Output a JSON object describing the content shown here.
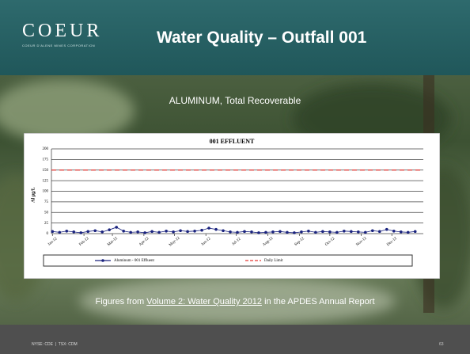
{
  "slide": {
    "logo": "COEUR",
    "logo_tagline": "COEUR D'ALENE MINES CORPORATION",
    "title": "Water Quality – Outfall 001",
    "subtitle": "ALUMINUM, Total Recoverable",
    "caption": [
      "Figures from ",
      "Volume 2: Water Quality 2012",
      " in the APDES Annual Report"
    ],
    "footer": "NYSE: CDE  |  TSX: CDM",
    "page_number": "63"
  },
  "chart_data": {
    "type": "line",
    "title": "001 EFFLUENT",
    "y_label": "Al µg/L",
    "xlim": [
      0,
      366
    ],
    "xticks": [
      {
        "value": 1,
        "label": "Jan-12"
      },
      {
        "value": 32,
        "label": "Feb-12"
      },
      {
        "value": 60,
        "label": "Mar-12"
      },
      {
        "value": 91,
        "label": "Apr-12"
      },
      {
        "value": 121,
        "label": "May-12"
      },
      {
        "value": 152,
        "label": "Jun-12"
      },
      {
        "value": 182,
        "label": "Jul-12"
      },
      {
        "value": 213,
        "label": "Aug-12"
      },
      {
        "value": 244,
        "label": "Sep-12"
      },
      {
        "value": 274,
        "label": "Oct-12"
      },
      {
        "value": 305,
        "label": "Nov-12"
      },
      {
        "value": 335,
        "label": "Dec-12"
      }
    ],
    "ylim": [
      0,
      200
    ],
    "yticks": [
      0,
      25,
      50,
      75,
      100,
      125,
      150,
      175,
      200
    ],
    "grid": true,
    "series": [
      {
        "name": "Aluminum - 001 Effluent",
        "color": "#1a237e",
        "dash": false,
        "markers": true,
        "x": [
          1,
          8,
          15,
          22,
          29,
          36,
          43,
          50,
          57,
          64,
          71,
          78,
          85,
          92,
          99,
          106,
          113,
          120,
          127,
          134,
          141,
          148,
          155,
          162,
          169,
          176,
          183,
          190,
          197,
          204,
          211,
          218,
          225,
          232,
          239,
          246,
          253,
          260,
          267,
          274,
          281,
          288,
          295,
          302,
          309,
          316,
          323,
          330,
          337,
          344,
          351,
          358
        ],
        "values": [
          5,
          3,
          6,
          4,
          2,
          5,
          7,
          4,
          9,
          15,
          6,
          3,
          4,
          2,
          5,
          3,
          6,
          4,
          7,
          5,
          6,
          8,
          13,
          10,
          7,
          4,
          3,
          5,
          4,
          2,
          3,
          4,
          5,
          3,
          2,
          4,
          6,
          3,
          5,
          4,
          3,
          6,
          5,
          4,
          3,
          7,
          5,
          10,
          6,
          4,
          3,
          5
        ]
      },
      {
        "name": "Daily Limit",
        "color": "#e53935",
        "dash": true,
        "markers": false,
        "x": [
          0,
          366
        ],
        "values": [
          150,
          150
        ]
      }
    ]
  }
}
